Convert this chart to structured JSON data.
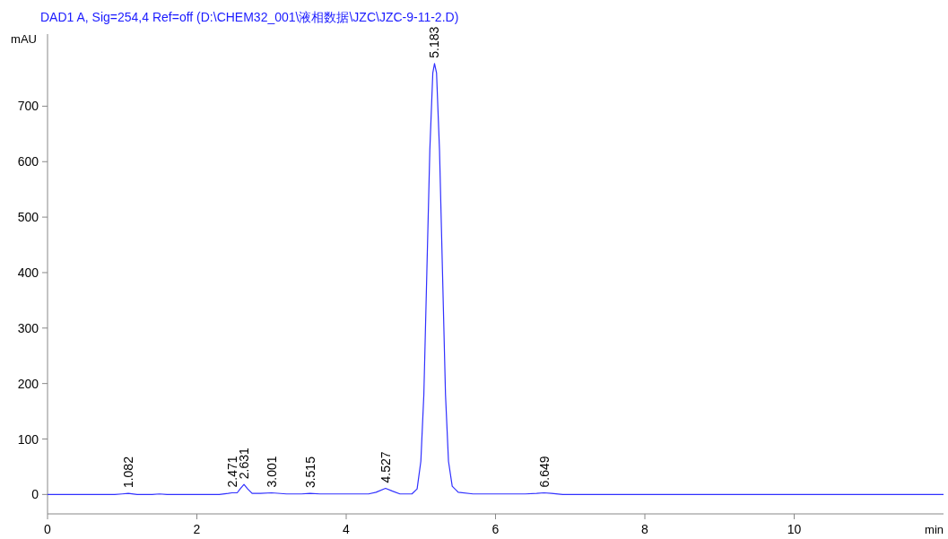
{
  "chart_data": {
    "type": "line",
    "title": "DAD1 A, Sig=254,4 Ref=off (D:\\CHEM32_001\\液相数据\\JZC\\JZC-9-11-2.D)",
    "xlabel": "min",
    "ylabel": "mAU",
    "xlim": [
      0,
      12
    ],
    "ylim": [
      -35,
      830
    ],
    "xticks": [
      0,
      2,
      4,
      6,
      8,
      10
    ],
    "yticks": [
      0,
      100,
      200,
      300,
      400,
      500,
      600,
      700
    ],
    "grid": false,
    "marker": "none",
    "line_style": "solid",
    "series": [
      {
        "color": "#3030ff",
        "x": [
          0,
          0.9,
          1.0,
          1.082,
          1.2,
          1.4,
          1.5,
          1.6,
          2.3,
          2.42,
          2.471,
          2.54,
          2.58,
          2.631,
          2.68,
          2.74,
          2.85,
          3.001,
          3.2,
          3.4,
          3.515,
          3.65,
          3.8,
          4.3,
          4.4,
          4.527,
          4.62,
          4.72,
          4.88,
          4.95,
          5.0,
          5.04,
          5.08,
          5.12,
          5.16,
          5.183,
          5.21,
          5.25,
          5.29,
          5.33,
          5.37,
          5.42,
          5.5,
          5.7,
          6.4,
          6.55,
          6.649,
          6.75,
          6.9,
          8,
          10,
          12
        ],
        "values": [
          0,
          0,
          1,
          2,
          0,
          0,
          1,
          0,
          0,
          2,
          3,
          3,
          10,
          18,
          10,
          2,
          2,
          3,
          1,
          1,
          2,
          1,
          1,
          1,
          4,
          11,
          6,
          1,
          1,
          10,
          60,
          180,
          400,
          620,
          760,
          777,
          760,
          620,
          400,
          180,
          60,
          15,
          4,
          1,
          1,
          2,
          3,
          2,
          0,
          0,
          0,
          0
        ]
      }
    ],
    "annotations": [
      {
        "text": "1.082",
        "x": 1.082,
        "y": 2
      },
      {
        "text": "2.471",
        "x": 2.471,
        "y": 3
      },
      {
        "text": "2.631",
        "x": 2.631,
        "y": 18
      },
      {
        "text": "3.001",
        "x": 3.001,
        "y": 3
      },
      {
        "text": "3.515",
        "x": 3.515,
        "y": 2
      },
      {
        "text": "4.527",
        "x": 4.527,
        "y": 11
      },
      {
        "text": "5.183",
        "x": 5.183,
        "y": 777
      },
      {
        "text": "6.649",
        "x": 6.649,
        "y": 3
      }
    ]
  }
}
